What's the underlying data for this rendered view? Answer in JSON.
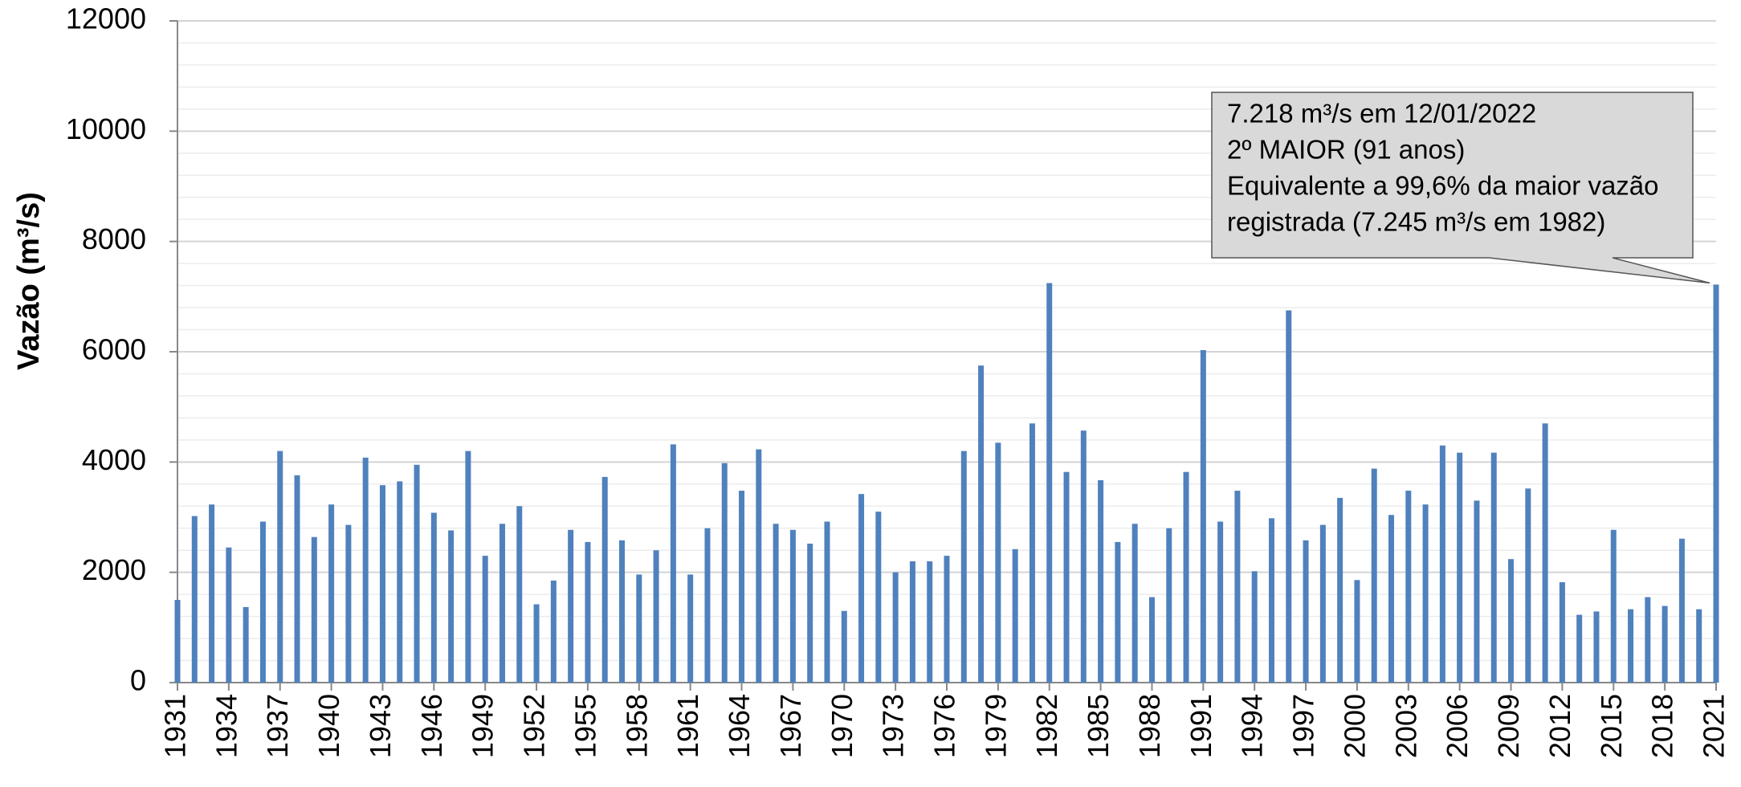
{
  "chart_data": {
    "type": "bar",
    "y_label": "Vazão (m³/s)",
    "x": [
      1931,
      1932,
      1933,
      1934,
      1935,
      1936,
      1937,
      1938,
      1939,
      1940,
      1941,
      1942,
      1943,
      1944,
      1945,
      1946,
      1947,
      1948,
      1949,
      1950,
      1951,
      1952,
      1953,
      1954,
      1955,
      1956,
      1957,
      1958,
      1959,
      1960,
      1961,
      1962,
      1963,
      1964,
      1965,
      1966,
      1967,
      1968,
      1969,
      1970,
      1971,
      1972,
      1973,
      1974,
      1975,
      1976,
      1977,
      1978,
      1979,
      1980,
      1981,
      1982,
      1983,
      1984,
      1985,
      1986,
      1987,
      1988,
      1989,
      1990,
      1991,
      1992,
      1993,
      1994,
      1995,
      1996,
      1997,
      1998,
      1999,
      2000,
      2001,
      2002,
      2003,
      2004,
      2005,
      2006,
      2007,
      2008,
      2009,
      2010,
      2011,
      2012,
      2013,
      2014,
      2015,
      2016,
      2017,
      2018,
      2019,
      2020,
      2021
    ],
    "values": [
      1500,
      3020,
      3230,
      2450,
      1370,
      2920,
      4200,
      3760,
      2640,
      3230,
      2860,
      4080,
      3580,
      3650,
      3950,
      3080,
      2760,
      4200,
      2300,
      2880,
      3200,
      1420,
      1850,
      2770,
      2550,
      3730,
      2580,
      1960,
      2400,
      4320,
      1960,
      2800,
      3980,
      3480,
      4230,
      2880,
      2770,
      2520,
      2920,
      1300,
      3420,
      3100,
      2000,
      2200,
      2200,
      2300,
      4200,
      5750,
      4350,
      2420,
      4700,
      7245,
      3820,
      4570,
      3670,
      2550,
      2880,
      1550,
      2800,
      3820,
      6030,
      2920,
      3480,
      2020,
      2980,
      6750,
      2580,
      2860,
      3350,
      1860,
      3880,
      3040,
      3480,
      3230,
      4300,
      4170,
      3300,
      4170,
      2240,
      3520,
      4700,
      1820,
      1230,
      1290,
      2770,
      1330,
      1550,
      1390,
      2610,
      1330,
      7218
    ],
    "color": "#4f81bd",
    "xlim": [
      1931,
      2021
    ],
    "xticks": [
      1931,
      1934,
      1937,
      1940,
      1943,
      1946,
      1949,
      1952,
      1955,
      1958,
      1961,
      1964,
      1967,
      1970,
      1973,
      1976,
      1979,
      1982,
      1985,
      1988,
      1991,
      1994,
      1997,
      2000,
      2003,
      2006,
      2009,
      2012,
      2015,
      2018,
      2021
    ],
    "ylim": [
      0,
      12000
    ],
    "yticks": [
      0,
      2000,
      4000,
      6000,
      8000,
      10000,
      12000
    ],
    "y_minor_ticks": [
      400,
      800,
      1200,
      1600,
      2400,
      2800,
      3200,
      3600,
      4400,
      4800,
      5200,
      5600,
      6400,
      6800,
      7200,
      7600,
      8400,
      8800,
      9200,
      9600,
      10400,
      10800,
      11200,
      11600
    ],
    "grid": true,
    "annotation": {
      "x": 2021,
      "y": 7218,
      "lines": [
        "7.218 m³/s em 12/01/2022",
        "2º MAIOR (91 anos)",
        "Equivalente a 99,6% da maior vazão",
        "registrada (7.245 m³/s em 1982)"
      ]
    }
  }
}
